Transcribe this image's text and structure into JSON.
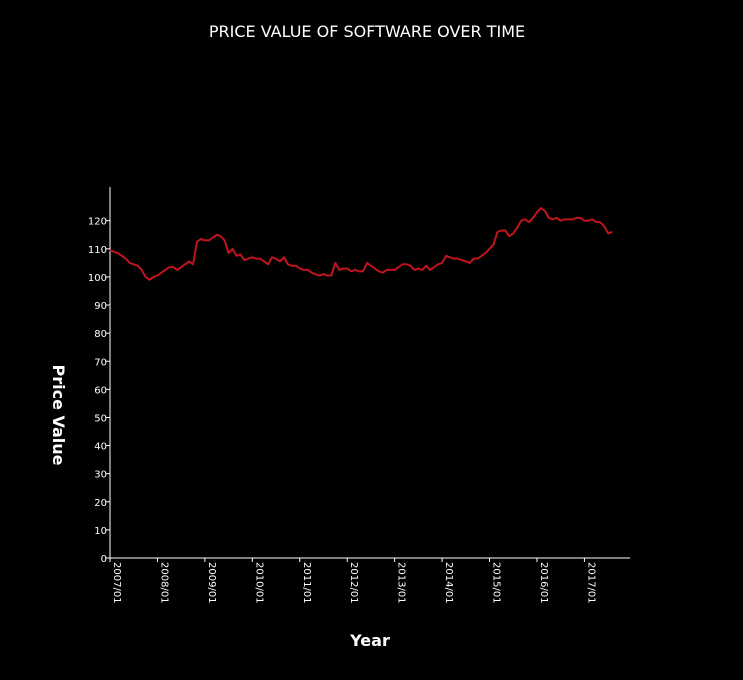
{
  "chart_data": {
    "type": "line",
    "title": "PRICE VALUE OF SOFTWARE OVER TIME",
    "xlabel": "Year",
    "ylabel": "Price Value",
    "ylim": [
      0,
      132
    ],
    "xlim": [
      "2007-01",
      "2017-10"
    ],
    "grid": false,
    "legend": "none",
    "yticks": [
      0,
      10,
      20,
      30,
      40,
      50,
      60,
      70,
      80,
      90,
      100,
      110,
      120
    ],
    "xticks": [
      "2007/01",
      "2008/01",
      "2009/01",
      "2010/01",
      "2011/01",
      "2012/01",
      "2013/01",
      "2014/01",
      "2015/01",
      "2016/01",
      "2017/01"
    ],
    "series": [
      {
        "name": "",
        "color": "#c0151d",
        "points": [
          [
            "2007-01",
            109.5
          ],
          [
            "2007-02",
            109
          ],
          [
            "2007-03",
            108.5
          ],
          [
            "2007-04",
            107.5
          ],
          [
            "2007-05",
            106.5
          ],
          [
            "2007-06",
            105
          ],
          [
            "2007-07",
            104.5
          ],
          [
            "2007-08",
            104
          ],
          [
            "2007-09",
            102.5
          ],
          [
            "2007-10",
            100
          ],
          [
            "2007-11",
            99
          ],
          [
            "2007-12",
            100
          ],
          [
            "2008-01",
            100.5
          ],
          [
            "2008-02",
            101.5
          ],
          [
            "2008-03",
            102.5
          ],
          [
            "2008-04",
            103.5
          ],
          [
            "2008-05",
            103.5
          ],
          [
            "2008-06",
            102.5
          ],
          [
            "2008-07",
            103.5
          ],
          [
            "2008-08",
            104.5
          ],
          [
            "2008-09",
            105.5
          ],
          [
            "2008-10",
            104.5
          ],
          [
            "2008-11",
            112.5
          ],
          [
            "2008-12",
            113.5
          ],
          [
            "2009-01",
            113
          ],
          [
            "2009-02",
            113
          ],
          [
            "2009-03",
            114
          ],
          [
            "2009-04",
            115
          ],
          [
            "2009-05",
            114.5
          ],
          [
            "2009-06",
            113
          ],
          [
            "2009-07",
            108.5
          ],
          [
            "2009-08",
            110
          ],
          [
            "2009-09",
            107.5
          ],
          [
            "2009-10",
            108
          ],
          [
            "2009-11",
            106
          ],
          [
            "2009-12",
            106.5
          ],
          [
            "2010-01",
            107
          ],
          [
            "2010-02",
            106.5
          ],
          [
            "2010-03",
            106.5
          ],
          [
            "2010-04",
            105.5
          ],
          [
            "2010-05",
            104.5
          ],
          [
            "2010-06",
            107
          ],
          [
            "2010-07",
            106.5
          ],
          [
            "2010-08",
            105.5
          ],
          [
            "2010-09",
            107
          ],
          [
            "2010-10",
            104.5
          ],
          [
            "2010-11",
            104
          ],
          [
            "2010-12",
            104
          ],
          [
            "2011-01",
            103
          ],
          [
            "2011-02",
            102.5
          ],
          [
            "2011-03",
            102.5
          ],
          [
            "2011-04",
            101.5
          ],
          [
            "2011-05",
            101
          ],
          [
            "2011-06",
            100.5
          ],
          [
            "2011-07",
            101
          ],
          [
            "2011-08",
            100.5
          ],
          [
            "2011-09",
            100.5
          ],
          [
            "2011-10",
            105
          ],
          [
            "2011-11",
            102.5
          ],
          [
            "2011-12",
            103
          ],
          [
            "2012-01",
            103
          ],
          [
            "2012-02",
            102
          ],
          [
            "2012-03",
            102.5
          ],
          [
            "2012-04",
            102
          ],
          [
            "2012-05",
            102
          ],
          [
            "2012-06",
            105
          ],
          [
            "2012-07",
            104
          ],
          [
            "2012-08",
            103
          ],
          [
            "2012-09",
            102
          ],
          [
            "2012-10",
            101.5
          ],
          [
            "2012-11",
            102.5
          ],
          [
            "2012-12",
            102.5
          ],
          [
            "2013-01",
            102.5
          ],
          [
            "2013-02",
            103.5
          ],
          [
            "2013-03",
            104.5
          ],
          [
            "2013-04",
            104.5
          ],
          [
            "2013-05",
            104
          ],
          [
            "2013-06",
            102.5
          ],
          [
            "2013-07",
            103
          ],
          [
            "2013-08",
            102.5
          ],
          [
            "2013-09",
            104
          ],
          [
            "2013-10",
            102.5
          ],
          [
            "2013-11",
            103.5
          ],
          [
            "2013-12",
            104.5
          ],
          [
            "2014-01",
            105
          ],
          [
            "2014-02",
            107.5
          ],
          [
            "2014-03",
            107
          ],
          [
            "2014-04",
            106.5
          ],
          [
            "2014-05",
            106.5
          ],
          [
            "2014-06",
            106
          ],
          [
            "2014-07",
            105.5
          ],
          [
            "2014-08",
            105
          ],
          [
            "2014-09",
            106.5
          ],
          [
            "2014-10",
            106.5
          ],
          [
            "2014-11",
            107.5
          ],
          [
            "2014-12",
            108.5
          ],
          [
            "2015-01",
            110
          ],
          [
            "2015-02",
            111.5
          ],
          [
            "2015-03",
            116
          ],
          [
            "2015-04",
            116.5
          ],
          [
            "2015-05",
            116.5
          ],
          [
            "2015-06",
            114.5
          ],
          [
            "2015-07",
            115.5
          ],
          [
            "2015-08",
            117.5
          ],
          [
            "2015-09",
            120
          ],
          [
            "2015-10",
            120.5
          ],
          [
            "2015-11",
            119.5
          ],
          [
            "2015-12",
            121
          ],
          [
            "2016-01",
            123
          ],
          [
            "2016-02",
            124.5
          ],
          [
            "2016-03",
            123.5
          ],
          [
            "2016-04",
            121
          ],
          [
            "2016-05",
            120.5
          ],
          [
            "2016-06",
            121
          ],
          [
            "2016-07",
            120
          ],
          [
            "2016-08",
            120.5
          ],
          [
            "2016-09",
            120.5
          ],
          [
            "2016-10",
            120.5
          ],
          [
            "2016-11",
            121
          ],
          [
            "2016-12",
            121
          ],
          [
            "2017-01",
            120
          ],
          [
            "2017-02",
            120
          ],
          [
            "2017-03",
            120.5
          ],
          [
            "2017-04",
            119.5
          ],
          [
            "2017-05",
            119.5
          ],
          [
            "2017-06",
            118
          ],
          [
            "2017-07",
            115.5
          ],
          [
            "2017-08",
            116
          ]
        ]
      }
    ]
  }
}
